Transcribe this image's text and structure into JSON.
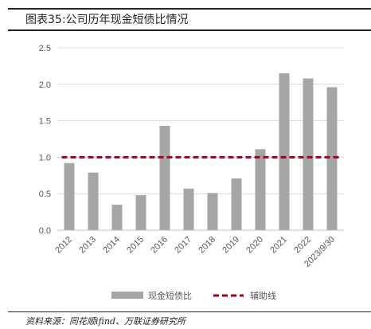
{
  "header": {
    "title": "图表35:公司历年现金短债比情况"
  },
  "footer": {
    "source": "资料来源：同花顺ifind、万联证券研究所"
  },
  "chart_data": {
    "type": "bar",
    "title": "",
    "xlabel": "",
    "ylabel": "",
    "categories": [
      "2012",
      "2013",
      "2014",
      "2015",
      "2016",
      "2017",
      "2018",
      "2019",
      "2020",
      "2021",
      "2022",
      "2023/9/30"
    ],
    "series": [
      {
        "name": "现金短债比",
        "type": "bar",
        "color": "#a6a6a6",
        "values": [
          0.92,
          0.79,
          0.35,
          0.48,
          1.43,
          0.57,
          0.51,
          0.71,
          1.11,
          2.15,
          2.08,
          1.96
        ]
      },
      {
        "name": "辅助线",
        "type": "line",
        "style": "dashed",
        "color": "#a50021",
        "values": [
          1.0,
          1.0,
          1.0,
          1.0,
          1.0,
          1.0,
          1.0,
          1.0,
          1.0,
          1.0,
          1.0,
          1.0
        ]
      }
    ],
    "ylim": [
      0,
      2.5
    ],
    "yticks": [
      "0.0",
      "0.5",
      "1.0",
      "1.5",
      "2.0",
      "2.5"
    ],
    "grid": "horizontal",
    "legend_position": "bottom"
  }
}
